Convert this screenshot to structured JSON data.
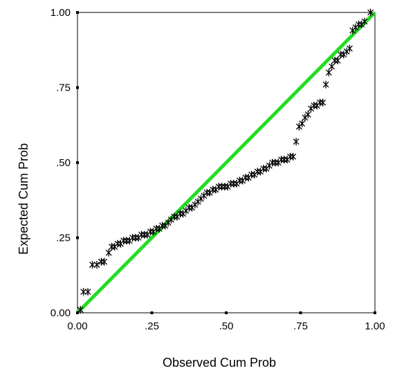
{
  "chart_data": {
    "type": "scatter",
    "title": "",
    "xlabel": "Observed Cum Prob",
    "ylabel": "Expected Cum Prob",
    "xlim": [
      0,
      1
    ],
    "ylim": [
      0,
      1
    ],
    "x_ticks": [
      {
        "value": 0,
        "label": "0.00"
      },
      {
        "value": 0.25,
        "label": ".25"
      },
      {
        "value": 0.5,
        "label": ".50"
      },
      {
        "value": 0.75,
        "label": ".75"
      },
      {
        "value": 1,
        "label": "1.00"
      }
    ],
    "y_ticks": [
      {
        "value": 0,
        "label": "0.00"
      },
      {
        "value": 0.25,
        "label": ".25"
      },
      {
        "value": 0.5,
        "label": ".50"
      },
      {
        "value": 0.75,
        "label": ".75"
      },
      {
        "value": 1,
        "label": "1.00"
      }
    ],
    "grid": false,
    "reference_line": {
      "from": [
        0,
        0
      ],
      "to": [
        1,
        1
      ],
      "color": "#22dd22"
    },
    "marker_style": "asterisk",
    "marker_color": "#000000",
    "points": [
      [
        0.01,
        0.01
      ],
      [
        0.02,
        0.07
      ],
      [
        0.035,
        0.07
      ],
      [
        0.05,
        0.16
      ],
      [
        0.065,
        0.16
      ],
      [
        0.08,
        0.17
      ],
      [
        0.09,
        0.17
      ],
      [
        0.105,
        0.2
      ],
      [
        0.115,
        0.22
      ],
      [
        0.125,
        0.22
      ],
      [
        0.135,
        0.23
      ],
      [
        0.145,
        0.23
      ],
      [
        0.155,
        0.24
      ],
      [
        0.165,
        0.24
      ],
      [
        0.175,
        0.24
      ],
      [
        0.185,
        0.25
      ],
      [
        0.195,
        0.25
      ],
      [
        0.205,
        0.25
      ],
      [
        0.215,
        0.26
      ],
      [
        0.225,
        0.26
      ],
      [
        0.235,
        0.26
      ],
      [
        0.245,
        0.27
      ],
      [
        0.255,
        0.27
      ],
      [
        0.265,
        0.28
      ],
      [
        0.275,
        0.28
      ],
      [
        0.285,
        0.29
      ],
      [
        0.295,
        0.29
      ],
      [
        0.305,
        0.3
      ],
      [
        0.315,
        0.31
      ],
      [
        0.325,
        0.32
      ],
      [
        0.335,
        0.32
      ],
      [
        0.345,
        0.33
      ],
      [
        0.355,
        0.33
      ],
      [
        0.365,
        0.34
      ],
      [
        0.375,
        0.35
      ],
      [
        0.385,
        0.35
      ],
      [
        0.395,
        0.36
      ],
      [
        0.405,
        0.37
      ],
      [
        0.415,
        0.38
      ],
      [
        0.425,
        0.39
      ],
      [
        0.435,
        0.4
      ],
      [
        0.445,
        0.4
      ],
      [
        0.455,
        0.41
      ],
      [
        0.465,
        0.41
      ],
      [
        0.475,
        0.42
      ],
      [
        0.485,
        0.42
      ],
      [
        0.495,
        0.42
      ],
      [
        0.505,
        0.42
      ],
      [
        0.515,
        0.43
      ],
      [
        0.525,
        0.43
      ],
      [
        0.535,
        0.43
      ],
      [
        0.545,
        0.44
      ],
      [
        0.555,
        0.44
      ],
      [
        0.565,
        0.45
      ],
      [
        0.575,
        0.45
      ],
      [
        0.585,
        0.46
      ],
      [
        0.595,
        0.46
      ],
      [
        0.605,
        0.47
      ],
      [
        0.615,
        0.47
      ],
      [
        0.625,
        0.48
      ],
      [
        0.635,
        0.48
      ],
      [
        0.645,
        0.49
      ],
      [
        0.655,
        0.5
      ],
      [
        0.665,
        0.5
      ],
      [
        0.675,
        0.5
      ],
      [
        0.685,
        0.51
      ],
      [
        0.695,
        0.51
      ],
      [
        0.705,
        0.51
      ],
      [
        0.715,
        0.52
      ],
      [
        0.725,
        0.52
      ],
      [
        0.735,
        0.57
      ],
      [
        0.745,
        0.62
      ],
      [
        0.755,
        0.63
      ],
      [
        0.765,
        0.65
      ],
      [
        0.775,
        0.66
      ],
      [
        0.785,
        0.68
      ],
      [
        0.795,
        0.69
      ],
      [
        0.805,
        0.69
      ],
      [
        0.815,
        0.7
      ],
      [
        0.825,
        0.7
      ],
      [
        0.835,
        0.76
      ],
      [
        0.845,
        0.8
      ],
      [
        0.855,
        0.82
      ],
      [
        0.865,
        0.84
      ],
      [
        0.875,
        0.84
      ],
      [
        0.885,
        0.86
      ],
      [
        0.895,
        0.86
      ],
      [
        0.905,
        0.87
      ],
      [
        0.915,
        0.88
      ],
      [
        0.925,
        0.94
      ],
      [
        0.935,
        0.95
      ],
      [
        0.945,
        0.96
      ],
      [
        0.955,
        0.96
      ],
      [
        0.965,
        0.97
      ],
      [
        0.985,
        1.0
      ]
    ]
  }
}
